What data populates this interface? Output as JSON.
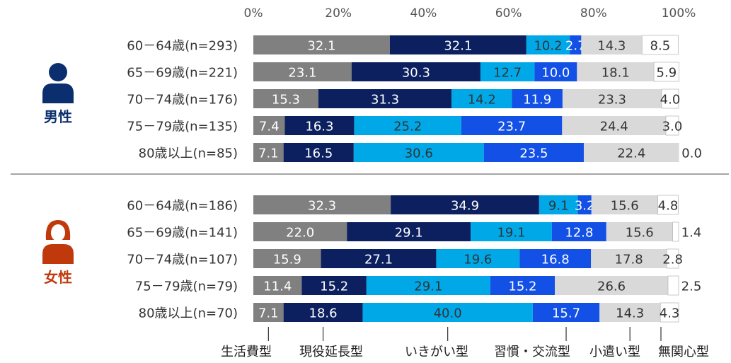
{
  "chart_data": {
    "type": "bar",
    "orientation": "horizontal",
    "stacked": true,
    "axis": {
      "min": 0,
      "max": 100,
      "ticks": [
        0,
        20,
        40,
        60,
        80,
        100
      ],
      "tick_labels": [
        "0%",
        "20%",
        "40%",
        "60%",
        "80%",
        "100%"
      ],
      "grid": false
    },
    "series_names": [
      "生活費型",
      "現役延長型",
      "いきがい型",
      "習慣・交流型",
      "小遣い型",
      "無関心型"
    ],
    "colors": [
      "#808080",
      "#0c2060",
      "#00a8e8",
      "#1250e6",
      "#d9d9d9",
      "#ffffff"
    ],
    "groups": [
      {
        "label": "男性",
        "color": "#0b2f6e",
        "icon": "male-person-icon",
        "rows": [
          {
            "label": "60－64歳(n=293)",
            "values": [
              32.1,
              32.1,
              10.2,
              2.7,
              14.3,
              8.5
            ],
            "labels": [
              "32.1",
              "32.1",
              "10.2",
              "2.7",
              "14.3",
              "8.5"
            ]
          },
          {
            "label": "65－69歳(n=221)",
            "values": [
              23.1,
              30.3,
              12.7,
              10.0,
              18.1,
              5.9
            ],
            "labels": [
              "23.1",
              "30.3",
              "12.7",
              "10.0",
              "18.1",
              "5.9"
            ]
          },
          {
            "label": "70－74歳(n=176)",
            "values": [
              15.3,
              31.3,
              14.2,
              11.9,
              23.3,
              4.0
            ],
            "labels": [
              "15.3",
              "31.3",
              "14.2",
              "11.9",
              "23.3",
              "4.0"
            ]
          },
          {
            "label": "75－79歳(n=135)",
            "values": [
              7.4,
              16.3,
              25.2,
              23.7,
              24.4,
              3.0
            ],
            "labels": [
              "7.4",
              "16.3",
              "25.2",
              "23.7",
              "24.4",
              "3.0"
            ]
          },
          {
            "label": "80歳以上(n=85)",
            "values": [
              7.1,
              16.5,
              30.6,
              23.5,
              22.4,
              0.0
            ],
            "labels": [
              "7.1",
              "16.5",
              "30.6",
              "23.5",
              "22.4",
              "0.0"
            ]
          }
        ]
      },
      {
        "label": "女性",
        "color": "#c0390c",
        "icon": "female-person-icon",
        "rows": [
          {
            "label": "60－64歳(n=186)",
            "values": [
              32.3,
              34.9,
              9.1,
              3.2,
              15.6,
              4.8
            ],
            "labels": [
              "32.3",
              "34.9",
              "9.1",
              "3.2",
              "15.6",
              "4.8"
            ]
          },
          {
            "label": "65－69歳(n=141)",
            "values": [
              22.0,
              29.1,
              19.1,
              12.8,
              15.6,
              1.4
            ],
            "labels": [
              "22.0",
              "29.1",
              "19.1",
              "12.8",
              "15.6",
              "1.4"
            ]
          },
          {
            "label": "70－74歳(n=107)",
            "values": [
              15.9,
              27.1,
              19.6,
              16.8,
              17.8,
              2.8
            ],
            "labels": [
              "15.9",
              "27.1",
              "19.6",
              "16.8",
              "17.8",
              "2.8"
            ]
          },
          {
            "label": "75－79歳(n=79)",
            "values": [
              11.4,
              15.2,
              29.1,
              15.2,
              26.6,
              2.5
            ],
            "labels": [
              "11.4",
              "15.2",
              "29.1",
              "15.2",
              "26.6",
              "2.5"
            ]
          },
          {
            "label": "80歳以上(n=70)",
            "values": [
              7.1,
              18.6,
              40.0,
              15.7,
              14.3,
              4.3
            ],
            "labels": [
              "7.1",
              "18.6",
              "40.0",
              "15.7",
              "14.3",
              "4.3"
            ]
          }
        ]
      }
    ]
  }
}
